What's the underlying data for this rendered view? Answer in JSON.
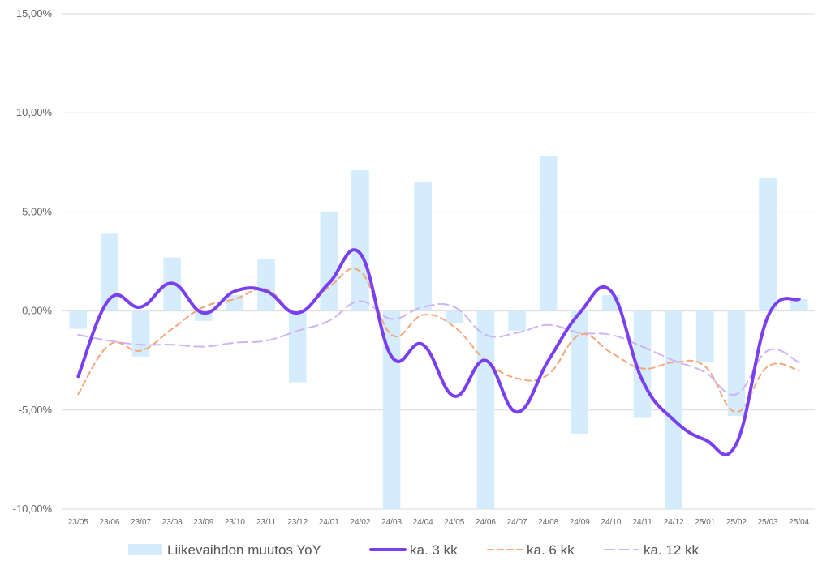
{
  "chart_data": {
    "type": "bar",
    "categories": [
      "23/05",
      "23/06",
      "23/07",
      "23/08",
      "23/09",
      "23/10",
      "23/11",
      "23/12",
      "24/01",
      "24/02",
      "24/03",
      "24/04",
      "24/05",
      "24/06",
      "24/07",
      "24/08",
      "24/09",
      "24/10",
      "24/11",
      "24/12",
      "25/01",
      "25/02",
      "25/03",
      "25/04"
    ],
    "y_tick_labels": [
      "15,00%",
      "10,00%",
      "5,00%",
      "0,00%",
      "-5,00%",
      "-10,00%"
    ],
    "y_tick_values": [
      15,
      10,
      5,
      0,
      -5,
      -10
    ],
    "ylim": [
      -10,
      15
    ],
    "grid": true,
    "legend_position": "bottom",
    "title": "",
    "xlabel": "",
    "ylabel": "",
    "series": [
      {
        "name": "Liikevaihdon muutos YoY",
        "kind": "bar",
        "color": "#d4ecfb",
        "values": [
          -0.9,
          3.9,
          -2.3,
          2.7,
          -0.5,
          0.8,
          2.6,
          -3.6,
          5.0,
          7.1,
          -10.0,
          6.5,
          -0.6,
          -10.0,
          -1.0,
          7.8,
          -6.2,
          0.8,
          -5.4,
          -10.0,
          -2.6,
          -5.3,
          6.7,
          0.6
        ]
      },
      {
        "name": "ka. 3 kk",
        "kind": "line",
        "style": "solid",
        "color": "#7b3ff2",
        "values": [
          -3.3,
          0.6,
          0.2,
          1.4,
          -0.1,
          1.0,
          1.0,
          -0.1,
          1.4,
          2.9,
          -2.3,
          -1.7,
          -4.3,
          -2.5,
          -5.1,
          -2.5,
          -0.1,
          1.0,
          -3.5,
          -5.5,
          -6.5,
          -6.7,
          -0.3,
          0.6
        ]
      },
      {
        "name": "ka. 6 kk",
        "kind": "line",
        "style": "dashed",
        "color": "#f4a77b",
        "values": [
          -4.2,
          -1.7,
          -2.0,
          -0.9,
          0.2,
          0.6,
          1.1,
          -0.1,
          1.2,
          2.0,
          -1.2,
          -0.2,
          -0.8,
          -2.5,
          -3.4,
          -3.2,
          -1.2,
          -2.1,
          -2.9,
          -2.6,
          -2.8,
          -5.1,
          -2.8,
          -3.0
        ]
      },
      {
        "name": "ka. 12 kk",
        "kind": "line",
        "style": "dashed",
        "color": "#cfb4f7",
        "values": [
          -1.2,
          -1.5,
          -1.7,
          -1.7,
          -1.8,
          -1.6,
          -1.5,
          -1.0,
          -0.5,
          0.5,
          -0.4,
          0.2,
          0.2,
          -1.2,
          -1.1,
          -0.7,
          -1.1,
          -1.2,
          -1.8,
          -2.5,
          -3.1,
          -4.2,
          -2.0,
          -2.6
        ]
      }
    ]
  }
}
